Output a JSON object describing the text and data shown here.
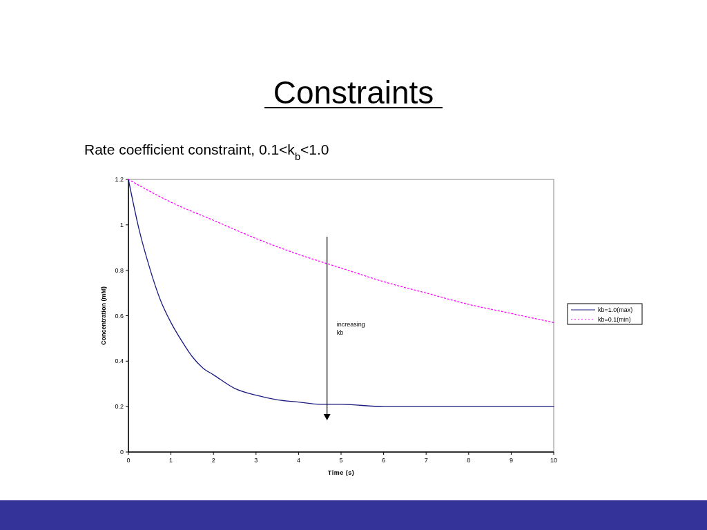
{
  "chart_data": {
    "type": "line",
    "title": "Constraints",
    "subtitle": "Rate coefficient constraint, 0.1<k$_{b}$<1.0",
    "xlabel": "Time (s)",
    "ylabel": "Concentration (mM)",
    "annotations": [
      "increasing kb"
    ],
    "xlim": [
      0,
      10
    ],
    "xticks": [
      0,
      1,
      2,
      3,
      4,
      5,
      6,
      7,
      8,
      9,
      10
    ],
    "ylim": [
      0,
      1.2
    ],
    "yticks": [
      0,
      0.2,
      0.4,
      0.6,
      0.8,
      1,
      1.2
    ],
    "grid": false,
    "legend": "right",
    "marker": "none",
    "series": [
      {
        "name": "kb=1.0(max)",
        "color": "#1a1a80",
        "line_style": "solid",
        "x": [
          0,
          0.25,
          0.5,
          0.75,
          1,
          1.25,
          1.5,
          1.75,
          2,
          2.5,
          3,
          3.5,
          4,
          4.5,
          5,
          6,
          7,
          8,
          9,
          10
        ],
        "values": [
          1.2,
          0.98,
          0.81,
          0.67,
          0.57,
          0.49,
          0.42,
          0.37,
          0.34,
          0.28,
          0.25,
          0.23,
          0.22,
          0.21,
          0.21,
          0.2,
          0.2,
          0.2,
          0.2,
          0.2
        ]
      },
      {
        "name": "kb=0.1(min)",
        "color": "#ff00ff",
        "line_style": "dotted",
        "x": [
          0,
          1,
          2,
          3,
          4,
          5,
          6,
          7,
          8,
          9,
          10
        ],
        "values": [
          1.2,
          1.1,
          1.02,
          0.94,
          0.87,
          0.81,
          0.75,
          0.7,
          0.65,
          0.61,
          0.57
        ]
      }
    ]
  }
}
